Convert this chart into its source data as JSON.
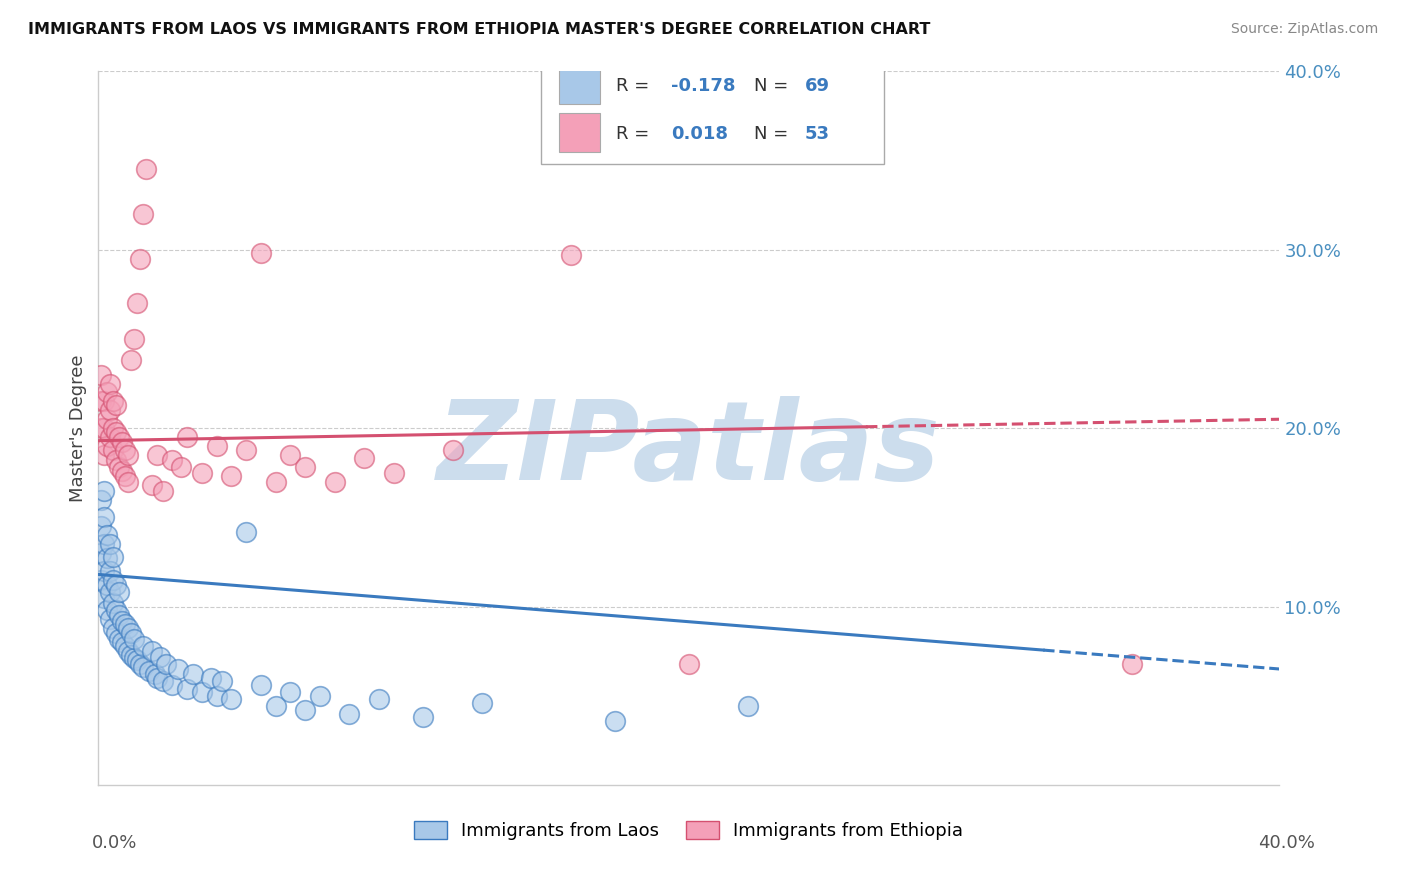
{
  "title": "IMMIGRANTS FROM LAOS VS IMMIGRANTS FROM ETHIOPIA MASTER'S DEGREE CORRELATION CHART",
  "source": "Source: ZipAtlas.com",
  "ylabel": "Master's Degree",
  "xlim": [
    0.0,
    0.4
  ],
  "ylim": [
    0.0,
    0.4
  ],
  "R_blue": -0.178,
  "N_blue": 69,
  "R_pink": 0.018,
  "N_pink": 53,
  "blue_color": "#a8c8e8",
  "pink_color": "#f4a0b8",
  "blue_line_color": "#3a7abf",
  "pink_line_color": "#d45070",
  "watermark": "ZIPatlas",
  "watermark_color": "#ccdded",
  "legend_label_blue": "Immigrants from Laos",
  "legend_label_pink": "Immigrants from Ethiopia",
  "blue_line_x_start": 0.0,
  "blue_line_x_solid_end": 0.32,
  "blue_line_x_end": 0.4,
  "blue_line_y_start": 0.118,
  "blue_line_y_end": 0.065,
  "pink_line_x_start": 0.0,
  "pink_line_x_solid_end": 0.26,
  "pink_line_x_end": 0.4,
  "pink_line_y_start": 0.193,
  "pink_line_y_end": 0.205,
  "blue_x": [
    0.001,
    0.001,
    0.001,
    0.001,
    0.002,
    0.002,
    0.002,
    0.002,
    0.002,
    0.003,
    0.003,
    0.003,
    0.003,
    0.004,
    0.004,
    0.004,
    0.004,
    0.005,
    0.005,
    0.005,
    0.005,
    0.006,
    0.006,
    0.006,
    0.007,
    0.007,
    0.007,
    0.008,
    0.008,
    0.009,
    0.009,
    0.01,
    0.01,
    0.011,
    0.011,
    0.012,
    0.012,
    0.013,
    0.014,
    0.015,
    0.015,
    0.017,
    0.018,
    0.019,
    0.02,
    0.021,
    0.022,
    0.023,
    0.025,
    0.027,
    0.03,
    0.032,
    0.035,
    0.038,
    0.04,
    0.042,
    0.045,
    0.05,
    0.055,
    0.06,
    0.065,
    0.07,
    0.075,
    0.085,
    0.095,
    0.11,
    0.13,
    0.175,
    0.22
  ],
  "blue_y": [
    0.115,
    0.13,
    0.145,
    0.16,
    0.105,
    0.12,
    0.135,
    0.15,
    0.165,
    0.098,
    0.112,
    0.127,
    0.14,
    0.093,
    0.108,
    0.12,
    0.135,
    0.088,
    0.102,
    0.115,
    0.128,
    0.085,
    0.098,
    0.112,
    0.082,
    0.095,
    0.108,
    0.08,
    0.092,
    0.078,
    0.09,
    0.075,
    0.088,
    0.073,
    0.085,
    0.071,
    0.082,
    0.07,
    0.068,
    0.066,
    0.078,
    0.064,
    0.075,
    0.062,
    0.06,
    0.072,
    0.058,
    0.068,
    0.056,
    0.065,
    0.054,
    0.062,
    0.052,
    0.06,
    0.05,
    0.058,
    0.048,
    0.142,
    0.056,
    0.044,
    0.052,
    0.042,
    0.05,
    0.04,
    0.048,
    0.038,
    0.046,
    0.036,
    0.044
  ],
  "pink_x": [
    0.001,
    0.001,
    0.001,
    0.002,
    0.002,
    0.002,
    0.003,
    0.003,
    0.003,
    0.004,
    0.004,
    0.004,
    0.005,
    0.005,
    0.005,
    0.006,
    0.006,
    0.006,
    0.007,
    0.007,
    0.008,
    0.008,
    0.009,
    0.009,
    0.01,
    0.01,
    0.011,
    0.012,
    0.013,
    0.014,
    0.015,
    0.016,
    0.018,
    0.02,
    0.022,
    0.025,
    0.028,
    0.03,
    0.035,
    0.04,
    0.045,
    0.05,
    0.055,
    0.06,
    0.065,
    0.07,
    0.08,
    0.09,
    0.1,
    0.12,
    0.16,
    0.2,
    0.35
  ],
  "pink_y": [
    0.2,
    0.215,
    0.23,
    0.185,
    0.2,
    0.215,
    0.19,
    0.205,
    0.22,
    0.195,
    0.21,
    0.225,
    0.188,
    0.2,
    0.215,
    0.182,
    0.198,
    0.213,
    0.178,
    0.195,
    0.176,
    0.192,
    0.173,
    0.188,
    0.17,
    0.185,
    0.238,
    0.25,
    0.27,
    0.295,
    0.32,
    0.345,
    0.168,
    0.185,
    0.165,
    0.182,
    0.178,
    0.195,
    0.175,
    0.19,
    0.173,
    0.188,
    0.298,
    0.17,
    0.185,
    0.178,
    0.17,
    0.183,
    0.175,
    0.188,
    0.297,
    0.068,
    0.068
  ]
}
